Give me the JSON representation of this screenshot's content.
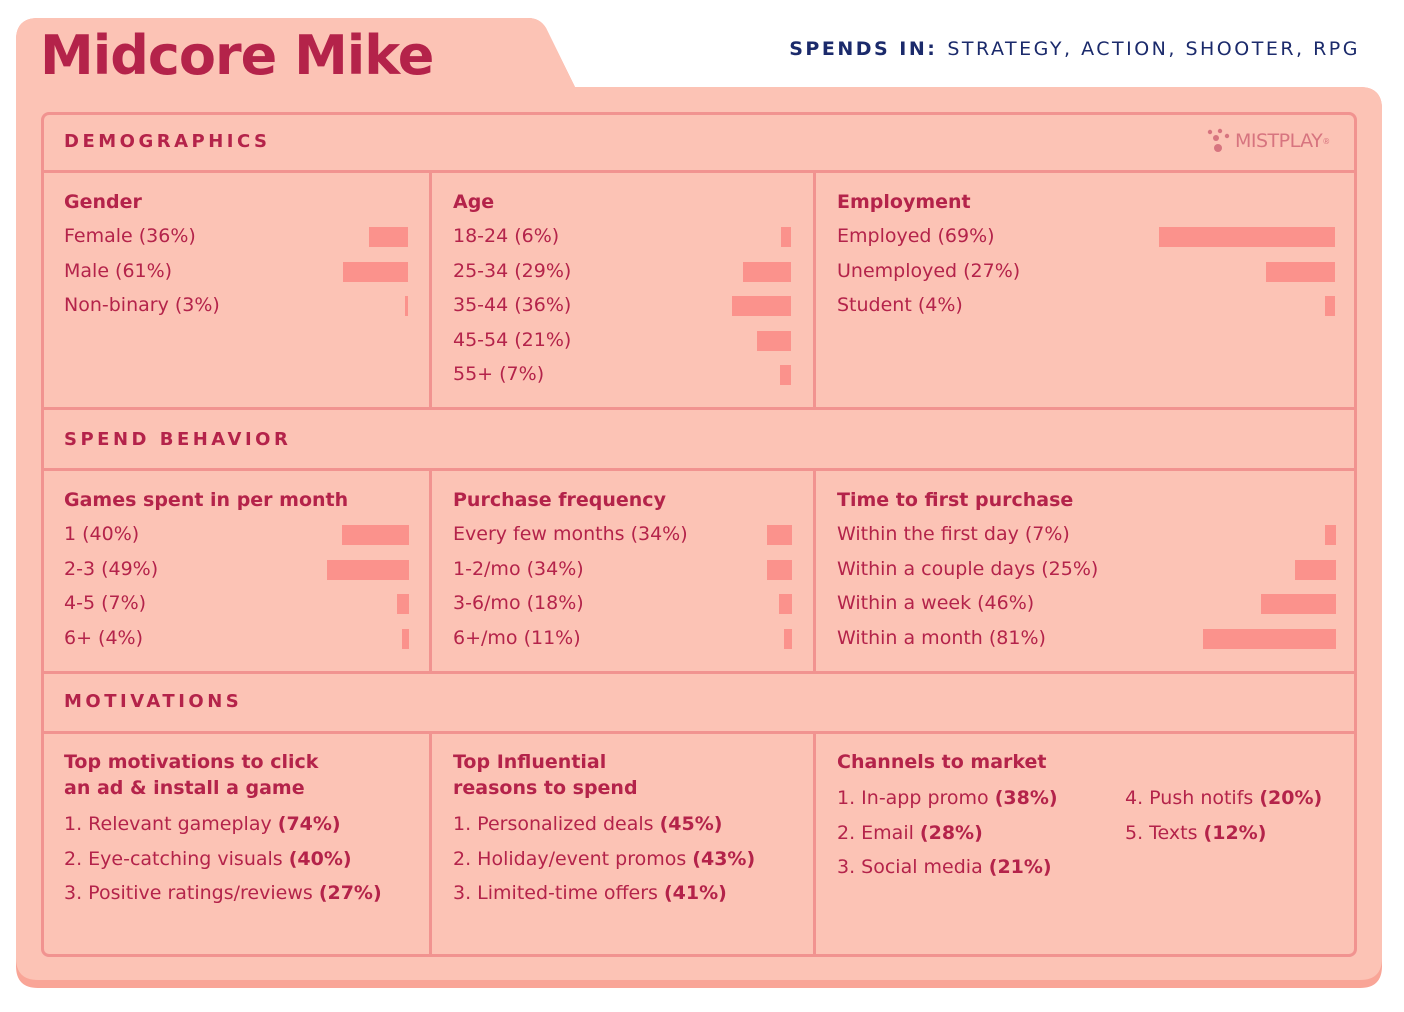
{
  "title": "Midcore Mike",
  "spends": {
    "label": "SPENDS IN:",
    "value": "STRATEGY, ACTION, SHOOTER, RPG"
  },
  "logo": "MISTPLAY",
  "colors": {
    "background": "#fcc3b5",
    "text": "#b4234a",
    "line": "#f19390",
    "bar": "#fb928c",
    "navy": "#1b2a6b"
  },
  "sections": {
    "demographics": "DEMOGRAPHICS",
    "spend": "SPEND BEHAVIOR",
    "motivations": "MOTIVATIONS"
  },
  "gender": {
    "title": "Gender",
    "items": [
      {
        "label": "Female (36%)",
        "value": 36
      },
      {
        "label": "Male (61%)",
        "value": 61
      },
      {
        "label": "Non-binary (3%)",
        "value": 3
      }
    ]
  },
  "age": {
    "title": "Age",
    "items": [
      {
        "label": "18-24 (6%)",
        "value": 6
      },
      {
        "label": "25-34 (29%)",
        "value": 29
      },
      {
        "label": "35-44 (36%)",
        "value": 36
      },
      {
        "label": "45-54 (21%)",
        "value": 21
      },
      {
        "label": "55+ (7%)",
        "value": 7
      }
    ]
  },
  "employment": {
    "title": "Employment",
    "items": [
      {
        "label": "Employed (69%)",
        "value": 69
      },
      {
        "label": "Unemployed (27%)",
        "value": 27
      },
      {
        "label": "Student (4%)",
        "value": 4
      }
    ]
  },
  "games": {
    "title": "Games spent in per month",
    "items": [
      {
        "label": "1 (40%)",
        "value": 40
      },
      {
        "label": "2-3 (49%)",
        "value": 49
      },
      {
        "label": "4-5 (7%)",
        "value": 7
      },
      {
        "label": "6+ (4%)",
        "value": 4
      }
    ]
  },
  "frequency": {
    "title": "Purchase frequency",
    "items": [
      {
        "label": "Every few months (34%)",
        "value": 34
      },
      {
        "label": "1-2/mo (34%)",
        "value": 34
      },
      {
        "label": "3-6/mo (18%)",
        "value": 18
      },
      {
        "label": "6+/mo (11%)",
        "value": 11
      }
    ]
  },
  "first": {
    "title": "Time to first purchase",
    "items": [
      {
        "label": "Within the first day (7%)",
        "value": 7
      },
      {
        "label": "Within a couple days (25%)",
        "value": 25
      },
      {
        "label": "Within a week (46%)",
        "value": 46
      },
      {
        "label": "Within a month (81%)",
        "value": 81
      }
    ]
  },
  "install": {
    "title1": "Top motivations to click",
    "title2": "an ad & install a game",
    "items": [
      {
        "text": "1. Relevant gameplay ",
        "pct": "(74%)"
      },
      {
        "text": "2. Eye-catching visuals ",
        "pct": "(40%)"
      },
      {
        "text": "3. Positive ratings/reviews ",
        "pct": "(27%)"
      }
    ]
  },
  "reasons": {
    "title1": "Top Influential",
    "title2": "reasons to spend",
    "items": [
      {
        "text": "1. Personalized deals ",
        "pct": "(45%)"
      },
      {
        "text": "2. Holiday/event promos ",
        "pct": "(43%)"
      },
      {
        "text": "3. Limited-time offers ",
        "pct": "(41%)"
      }
    ]
  },
  "channels": {
    "title": "Channels to market",
    "items": [
      {
        "text": "1. In-app promo ",
        "pct": "(38%)"
      },
      {
        "text": "2. Email ",
        "pct": "(28%)"
      },
      {
        "text": "3. Social media ",
        "pct": "(21%)"
      },
      {
        "text": "4. Push notifs ",
        "pct": "(20%)"
      },
      {
        "text": "5. Texts ",
        "pct": "(12%)"
      }
    ]
  }
}
